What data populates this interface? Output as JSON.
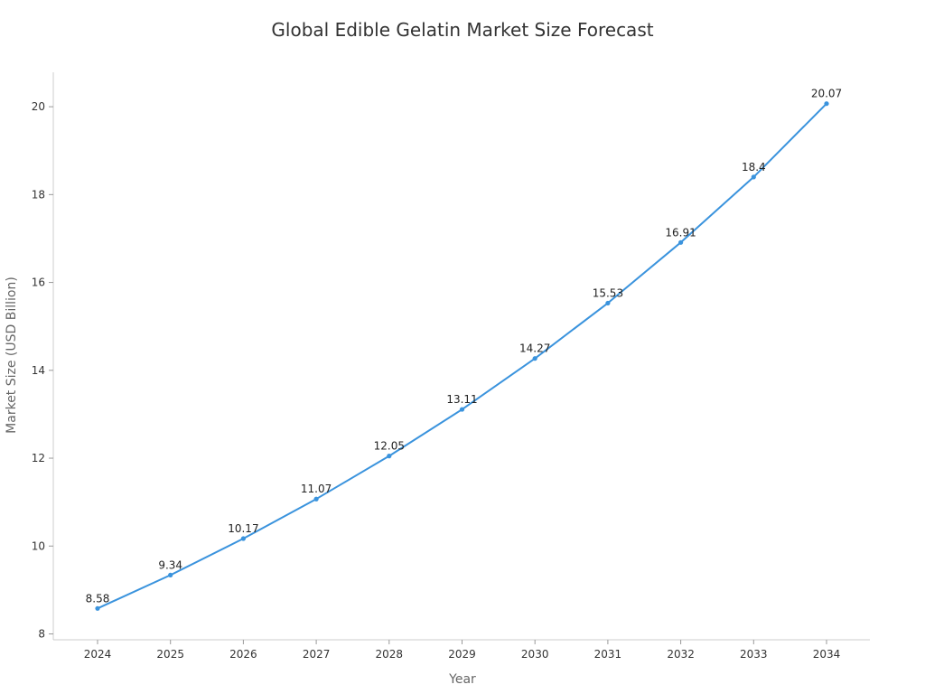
{
  "chart_data": {
    "type": "line",
    "title": "Global Edible Gelatin Market Size Forecast",
    "xlabel": "Year",
    "ylabel": "Market Size (USD Billion)",
    "categories": [
      "2024",
      "2025",
      "2026",
      "2027",
      "2028",
      "2029",
      "2030",
      "2031",
      "2032",
      "2033",
      "2034"
    ],
    "series": [
      {
        "values": [
          8.58,
          9.34,
          10.17,
          11.07,
          12.05,
          13.11,
          14.27,
          15.53,
          16.91,
          18.4,
          20.07
        ],
        "color": "#3a93dd"
      }
    ],
    "data_labels": [
      "8.58",
      "9.34",
      "10.17",
      "11.07",
      "12.05",
      "13.11",
      "14.27",
      "15.53",
      "16.91",
      "18.4",
      "20.07"
    ],
    "yticks": [
      8,
      10,
      12,
      14,
      16,
      18,
      20
    ],
    "ylim": [
      7.8,
      20.8
    ],
    "grid": false,
    "legend": "none"
  }
}
